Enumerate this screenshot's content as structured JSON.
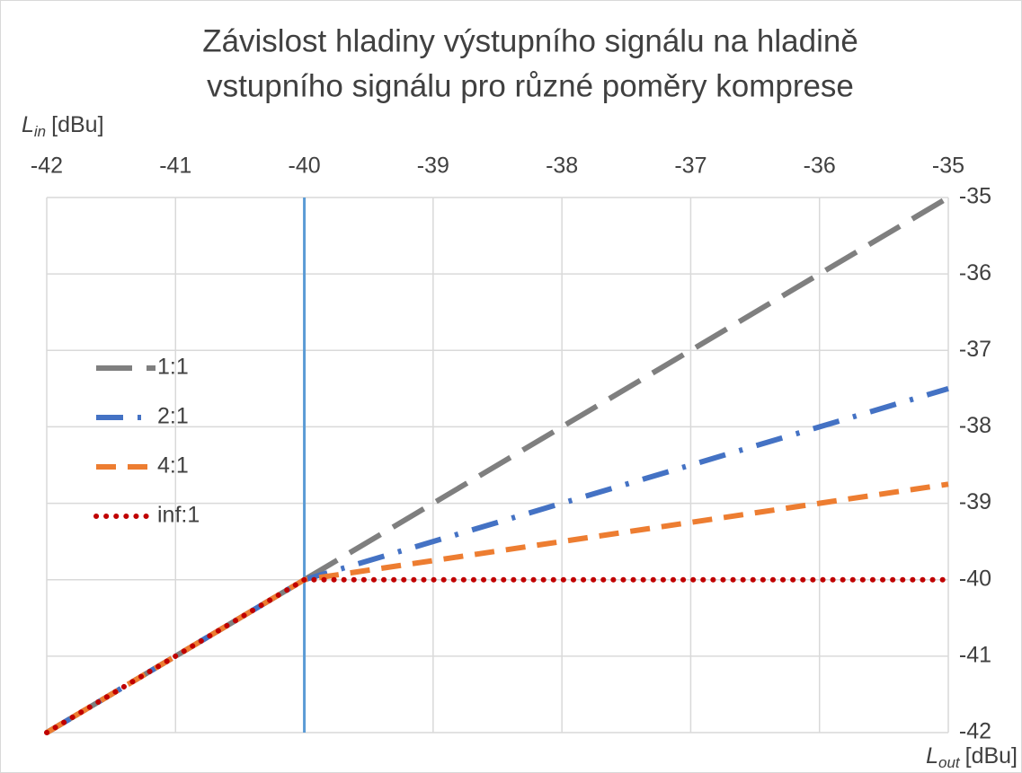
{
  "chart_data": {
    "type": "line",
    "title": [
      "Závislost hladiny výstupního signálu na hladině",
      "vstupního signálu pro různé poměry komprese"
    ],
    "x_label": {
      "base": "L",
      "sub": "in",
      "unit": "[dBu]"
    },
    "y_label": {
      "base": "L",
      "sub": "out",
      "unit": "[dBu]"
    },
    "x": [
      -42,
      -40,
      -35
    ],
    "series": [
      {
        "name": "1:1",
        "color": "#7f7f7f",
        "values": [
          -42,
          -40,
          -35
        ]
      },
      {
        "name": "2:1",
        "color": "#4472c4",
        "values": [
          -42,
          -40,
          -37.5
        ]
      },
      {
        "name": "4:1",
        "color": "#ed7d31",
        "values": [
          -42,
          -40,
          -38.75
        ]
      },
      {
        "name": "inf:1",
        "color": "#c00000",
        "values": [
          -42,
          -40,
          -40
        ]
      }
    ],
    "threshold": {
      "x": -40,
      "color": "#5b9bd5"
    },
    "xlim": [
      -42,
      -35
    ],
    "xticks": [
      -42,
      -41,
      -40,
      -39,
      -38,
      -37,
      -36,
      -35
    ],
    "ylim": [
      -42,
      -35
    ],
    "yticks": [
      -42,
      -41,
      -40,
      -39,
      -38,
      -37,
      -36,
      -35
    ],
    "grid": true,
    "legend": "left"
  }
}
